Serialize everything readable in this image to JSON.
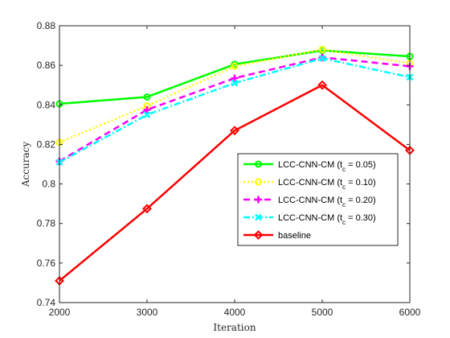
{
  "chart_data": {
    "type": "line",
    "title": "",
    "xlabel": "Iteration",
    "ylabel": "Accuracy",
    "x": [
      2000,
      3000,
      4000,
      5000,
      6000
    ],
    "xlim": [
      2000,
      6000
    ],
    "ylim": [
      0.74,
      0.88
    ],
    "xticks": [
      "2000",
      "3000",
      "4000",
      "5000",
      "6000"
    ],
    "yticks": [
      "0.74",
      "0.76",
      "0.78",
      "0.8",
      "0.82",
      "0.84",
      "0.86",
      "0.88"
    ],
    "grid": false,
    "legend_position": "right",
    "series": [
      {
        "name": "LCC-CNN-CM (t_c = 0.05)",
        "legend": {
          "pre": "LCC-CNN-CM (t",
          "sub": "c",
          "post": " = 0.05)"
        },
        "values": [
          0.8405,
          0.844,
          0.8605,
          0.8675,
          0.8645
        ],
        "color": "#00ff00",
        "dash": "solid",
        "marker": "circle"
      },
      {
        "name": "LCC-CNN-CM (t_c = 0.10)",
        "legend": {
          "pre": "LCC-CNN-CM (t",
          "sub": "c",
          "post": " = 0.10)"
        },
        "values": [
          0.821,
          0.8395,
          0.8595,
          0.868,
          0.861
        ],
        "color": "#ffff00",
        "dash": "dotted",
        "marker": "circle"
      },
      {
        "name": "LCC-CNN-CM (t_c = 0.20)",
        "legend": {
          "pre": "LCC-CNN-CM (t",
          "sub": "c",
          "post": " = 0.20)"
        },
        "values": [
          0.8115,
          0.8375,
          0.8535,
          0.864,
          0.8595
        ],
        "color": "#ff00ff",
        "dash": "dashed",
        "marker": "plus"
      },
      {
        "name": "LCC-CNN-CM (t_c = 0.30)",
        "legend": {
          "pre": "LCC-CNN-CM (t",
          "sub": "c",
          "post": " = 0.30)"
        },
        "values": [
          0.811,
          0.835,
          0.851,
          0.8635,
          0.854
        ],
        "color": "#00ffff",
        "dash": "dashdot",
        "marker": "x"
      },
      {
        "name": "baseline",
        "legend": {
          "pre": "baseline",
          "sub": "",
          "post": ""
        },
        "values": [
          0.751,
          0.7875,
          0.827,
          0.85,
          0.817
        ],
        "color": "#ff0000",
        "dash": "solid",
        "marker": "diamond"
      }
    ]
  }
}
